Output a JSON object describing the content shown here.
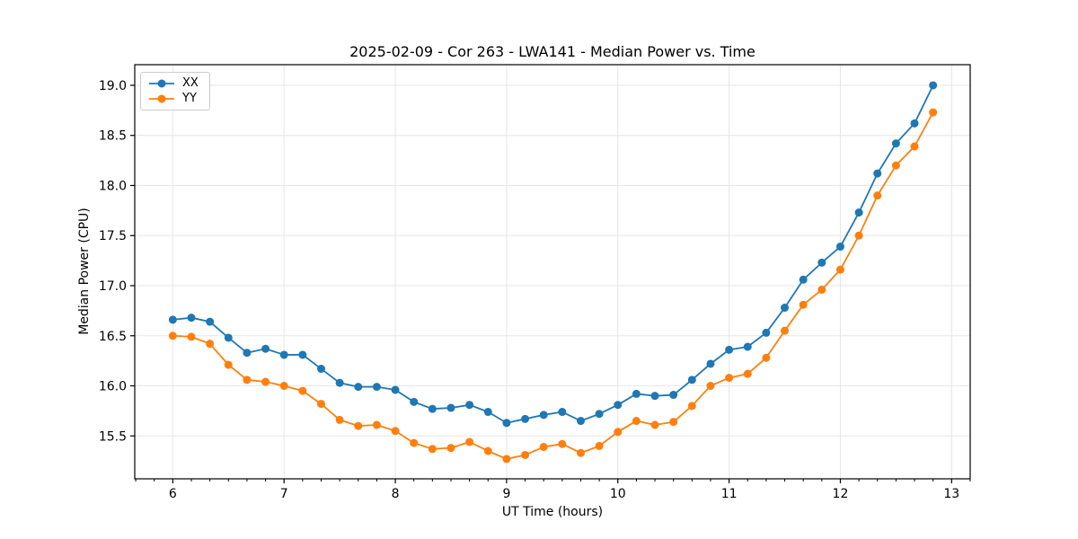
{
  "chart_data": {
    "type": "line",
    "title": "2025-02-09 - Cor 263 - LWA141 - Median Power vs. Time",
    "xlabel": "UT Time (hours)",
    "ylabel": "Median Power (CPU)",
    "legend_position": "upper left",
    "grid": true,
    "marker": "o",
    "xlim": [
      5.658,
      13.167
    ],
    "ylim": [
      15.072,
      19.206
    ],
    "xticks": [
      6,
      7,
      8,
      9,
      10,
      11,
      12,
      13
    ],
    "yticks": [
      15.5,
      16.0,
      16.5,
      17.0,
      17.5,
      18.0,
      18.5,
      19.0
    ],
    "x_minor_step_hours": 0.1667,
    "x": [
      6,
      6.1667,
      6.3333,
      6.5,
      6.6667,
      6.8333,
      7,
      7.1667,
      7.3333,
      7.5,
      7.6667,
      7.8333,
      8,
      8.1667,
      8.3333,
      8.5,
      8.6667,
      8.8333,
      9,
      9.1667,
      9.3333,
      9.5,
      9.6667,
      9.8333,
      10,
      10.1667,
      10.3333,
      10.5,
      10.6667,
      10.8333,
      11,
      11.1667,
      11.3333,
      11.5,
      11.6667,
      11.8333,
      12,
      12.1667,
      12.3333,
      12.5,
      12.6667,
      12.8333
    ],
    "series": [
      {
        "name": "XX",
        "color": "#1f77b4",
        "values": [
          16.66,
          16.68,
          16.64,
          16.48,
          16.33,
          16.37,
          16.31,
          16.31,
          16.17,
          16.03,
          15.99,
          15.99,
          15.96,
          15.84,
          15.77,
          15.78,
          15.81,
          15.74,
          15.63,
          15.67,
          15.71,
          15.74,
          15.65,
          15.72,
          15.81,
          15.92,
          15.9,
          15.91,
          16.06,
          16.22,
          16.36,
          16.39,
          16.53,
          16.78,
          17.06,
          17.23,
          17.39,
          17.73,
          18.12,
          18.42,
          18.62,
          19.0
        ]
      },
      {
        "name": "YY",
        "color": "#ff7f0e",
        "values": [
          16.5,
          16.49,
          16.42,
          16.21,
          16.06,
          16.04,
          16.0,
          15.95,
          15.82,
          15.66,
          15.6,
          15.61,
          15.55,
          15.43,
          15.37,
          15.38,
          15.44,
          15.35,
          15.27,
          15.31,
          15.39,
          15.42,
          15.33,
          15.4,
          15.54,
          15.65,
          15.61,
          15.64,
          15.8,
          16.0,
          16.08,
          16.12,
          16.28,
          16.55,
          16.81,
          16.96,
          17.16,
          17.5,
          17.9,
          18.2,
          18.39,
          18.73
        ]
      }
    ]
  }
}
